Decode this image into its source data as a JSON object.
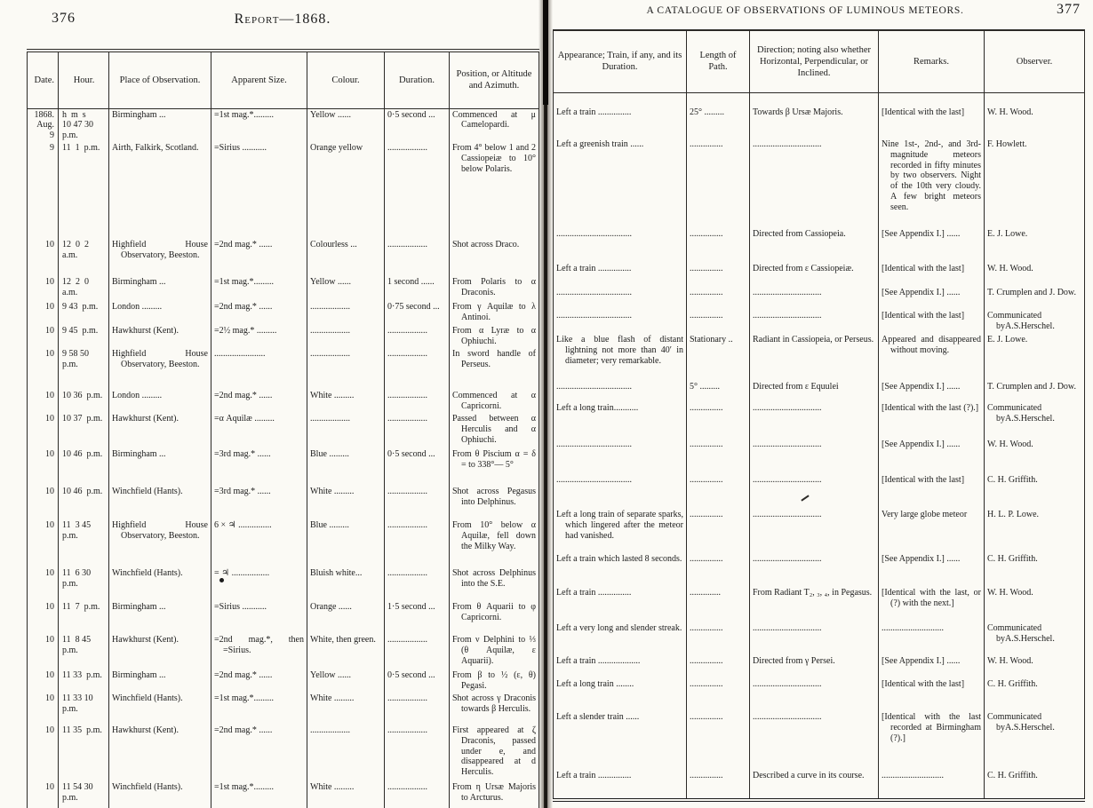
{
  "colors": {
    "ink": "#1b1b1b",
    "paper": "#fbfaf5",
    "spine": "#15120f"
  },
  "left_page": {
    "page_number": "376",
    "running_title": "Report—1868.",
    "columns": [
      "Date.",
      "Hour.",
      "Place of Observation.",
      "Apparent Size.",
      "Colour.",
      "Duration.",
      "Position, or Altitude and Azimuth."
    ],
    "rows": [
      [
        "1868.\nAug. 9",
        "h  m  s\n10 47 30\np.m.",
        "Birmingham  ...",
        "=1st mag.*.........",
        "Yellow  ......",
        "0·5 second ...",
        "Commenced at μ Camelopardi."
      ],
      [
        "9",
        "11  1  p.m.",
        "Airth, Falkirk, Scotland.",
        "=Sirius ...........",
        "Orange yellow",
        "..................",
        "From 4° below 1 and 2 Cassiopeiæ to 10° below Polaris."
      ],
      [
        "10",
        "12  0  2\na.m.",
        "Highfield House Observatory, Beeston.",
        "=2nd mag.* ......",
        "Colourless ...",
        "..................",
        "Shot across Draco."
      ],
      [
        "10",
        "12  2  0\na.m.",
        "Birmingham  ...",
        "=1st mag.*.........",
        "Yellow  ......",
        "1 second ......",
        "From Polaris to α Draconis."
      ],
      [
        "10",
        "9 43  p.m.",
        "London .........",
        "=2nd mag.* ......",
        "..................",
        "0·75 second ...",
        "From γ Aquilæ to λ Antinoi."
      ],
      [
        "10",
        "9 45  p.m.",
        "Hawkhurst (Kent).",
        "=2½ mag.* .........",
        "..................",
        "..................",
        "From α Lyræ to α Ophiuchi."
      ],
      [
        "10",
        "9 58 50\np.m.",
        "Highfield House Observatory, Beeston.",
        ".......................",
        "..................",
        "..................",
        "In sword handle of Perseus."
      ],
      [
        "10",
        "10 36  p.m.",
        "London .........",
        "=2nd mag.* ......",
        "White .........",
        "..................",
        "Commenced at α Capricorni."
      ],
      [
        "10",
        "10 37  p.m.",
        "Hawkhurst (Kent).",
        "=α Aquilæ .........",
        "..................",
        "..................",
        "Passed between α Herculis and α Ophiuchi."
      ],
      [
        "10",
        "10 46  p.m.",
        "Birmingham  ...",
        "=3rd mag.* ......",
        "Blue .........",
        "0·5 second ...",
        "From θ Piscium α =   δ = to 338°— 5°"
      ],
      [
        "10",
        "10 46  p.m.",
        "Winchfield (Hants).",
        "=3rd mag.* ......",
        "White .........",
        "..................",
        "Shot across Pegasus into Delphinus."
      ],
      [
        "10",
        "11  3 45\np.m.",
        "Highfield House Observatory, Beeston.",
        "6 × ♃ ...............",
        "Blue .........",
        "..................",
        "From 10° below α Aquilæ, fell down the Milky Way."
      ],
      [
        "10",
        "11  6 30\np.m.",
        "Winchfield (Hants).",
        "= ♃ .................",
        "Bluish white...",
        "..................",
        "Shot across Delphinus into the S.E."
      ],
      [
        "10",
        "11  7  p.m.",
        "Birmingham  ...",
        "=Sirius ...........",
        "Orange ......",
        "1·5 second ...",
        "From θ Aquarii to φ Capricorni."
      ],
      [
        "10",
        "11  8 45\np.m.",
        "Hawkhurst (Kent).",
        "=2nd mag.*, then =Sirius.",
        "White, then green.",
        "..................",
        "From ν Delphini to ⅓ (θ Aquilæ, ε Aquarii)."
      ],
      [
        "10",
        "11 33  p.m.",
        "Birmingham  ...",
        "=2nd mag.* ......",
        "Yellow  ......",
        "0·5 second ...",
        "From β to ½ (ε, θ) Pegasi."
      ],
      [
        "10",
        "11 33 10\np.m.",
        "Winchfield (Hants).",
        "=1st mag.*.........",
        "White .........",
        "..................",
        "Shot across γ Draconis towards β Herculis."
      ],
      [
        "10",
        "11 35  p.m.",
        "Hawkhurst (Kent).",
        "=2nd mag.* ......",
        "..................",
        "..................",
        "First appeared at ζ Draconis, passed under e, and disappeared at d Herculis."
      ],
      [
        "10",
        "11 54 30\np.m.",
        "Winchfield (Hants).",
        "=1st mag.*.........",
        "White .........",
        "..................",
        "From η Ursæ Majoris to Arcturus."
      ]
    ]
  },
  "right_page": {
    "page_number": "377",
    "running_title": "A CATALOGUE OF OBSERVATIONS OF LUMINOUS METEORS.",
    "columns": [
      "Appearance; Train, if any, and its Duration.",
      "Length of Path.",
      "Direction; noting also whether Horizontal, Perpendicular, or Inclined.",
      "Remarks.",
      "Observer."
    ],
    "rows": [
      [
        "Left a train  ...............",
        "25° .........",
        "Towards β Ursæ Majoris.",
        "[Identical with the last]",
        "W. H. Wood."
      ],
      [
        "Left a greenish train ......",
        "...............",
        "...............................",
        "Nine 1st-, 2nd-, and 3rd-magnitude meteors recorded in fifty minutes by two observers.  Night of the 10th very cloudy. A few bright meteors seen.",
        "F. Howlett."
      ],
      [
        "..................................",
        "...............",
        "Directed from Cassiopeia.",
        "[See Appendix I.] ......",
        "E. J. Lowe."
      ],
      [
        "Left a train  ...............",
        "...............",
        "Directed from ε Cassiopeiæ.",
        "[Identical with the last]",
        "W. H. Wood."
      ],
      [
        "..................................",
        "...............",
        "...............................",
        "[See Appendix I.] ......",
        "T. Crumplen and J. Dow."
      ],
      [
        "..................................",
        "...............",
        "...............................",
        "[Identical with the last]",
        "Communicated byA.S.Herschel."
      ],
      [
        "Like a blue flash of distant lightning not more than 40′ in diameter; very remarkable.",
        "Stationary ..",
        "Radiant in Cassiopeia, or Perseus.",
        "Appeared and disappeared without moving.",
        "E. J. Lowe."
      ],
      [
        "..................................",
        "5° .........",
        "Directed from ε Equulei",
        "[See Appendix I.] ......",
        "T. Crumplen and J. Dow."
      ],
      [
        "Left a long train...........",
        "...............",
        "...............................",
        "[Identical with the last (?).]",
        "Communicated byA.S.Herschel."
      ],
      [
        "..................................",
        "...............",
        "...............................",
        "[See Appendix I.] ......",
        "W. H. Wood."
      ],
      [
        "..................................",
        "...............",
        "...............................",
        "[Identical with the last]",
        "C. H. Griffith."
      ],
      [
        "Left a long train of separate sparks, which lingered after the meteor had vanished.",
        "...............",
        "...............................",
        "Very large globe meteor",
        "H. L. P. Lowe."
      ],
      [
        "Left a train which lasted 8 seconds.",
        "...............",
        "...............................",
        "[See Appendix I.] ......",
        "C. H. Griffith."
      ],
      [
        "Left a train  ...............",
        "..............",
        "From Radiant T₂, ₃, ₄, in Pegasus.",
        "[Identical with the last, or (?) with the next.]",
        "W. H. Wood."
      ],
      [
        "Left a very long and slender streak.",
        "...............",
        "...............................",
        "............................",
        "Communicated byA.S.Herschel."
      ],
      [
        "Left a train ...................",
        "...............",
        "Directed from γ Persei.",
        "[See Appendix I.] ......",
        "W. H. Wood."
      ],
      [
        "Left a long train  ........",
        "...............",
        "...............................",
        "[Identical with the last]",
        "C. H. Griffith."
      ],
      [
        "Left a slender train  ......",
        "...............",
        "...............................",
        "[Identical with the last recorded at Birmingham (?).]",
        "Communicated byA.S.Herschel."
      ],
      [
        "Left a train  ...............",
        "...............",
        "Described a curve in its course.",
        "............................",
        "C. H. Griffith."
      ]
    ]
  }
}
